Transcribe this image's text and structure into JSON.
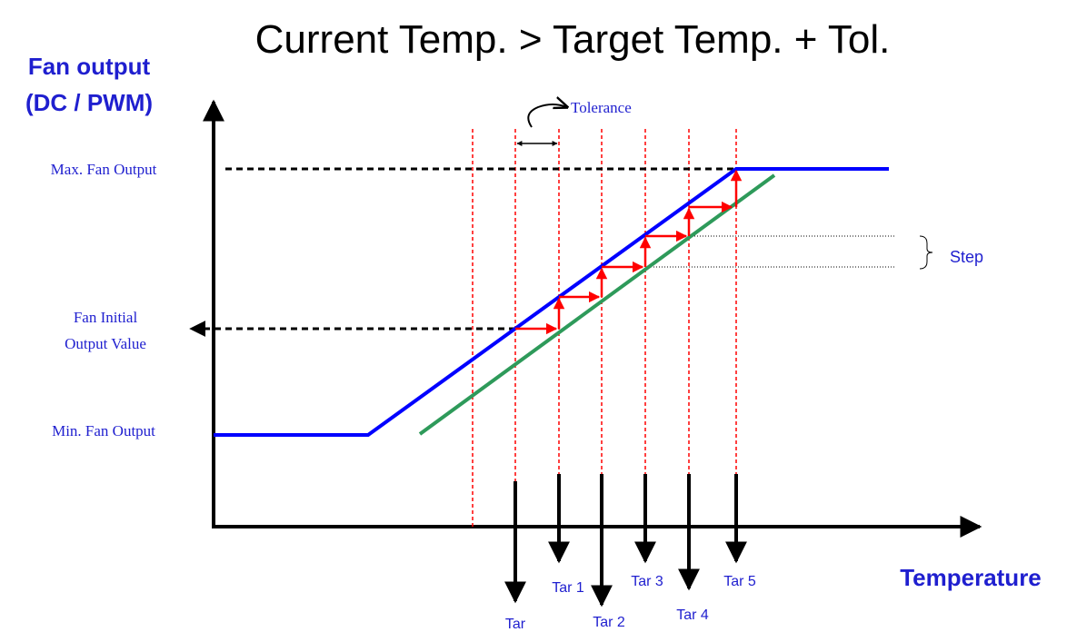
{
  "title": "Current Temp. > Target Temp. + Tol.",
  "y_axis_label": [
    "Fan output",
    "(DC / PWM)"
  ],
  "x_axis_label": "Temperature",
  "levels": {
    "max": "Max. Fan Output",
    "initial": [
      "Fan Initial",
      "Output Value"
    ],
    "min": "Min. Fan Output"
  },
  "tolerance": "Tolerance",
  "step": "Step",
  "targets": [
    "Tar",
    "Tar 1",
    "Tar 2",
    "Tar 3",
    "Tar 4",
    "Tar 5"
  ]
}
